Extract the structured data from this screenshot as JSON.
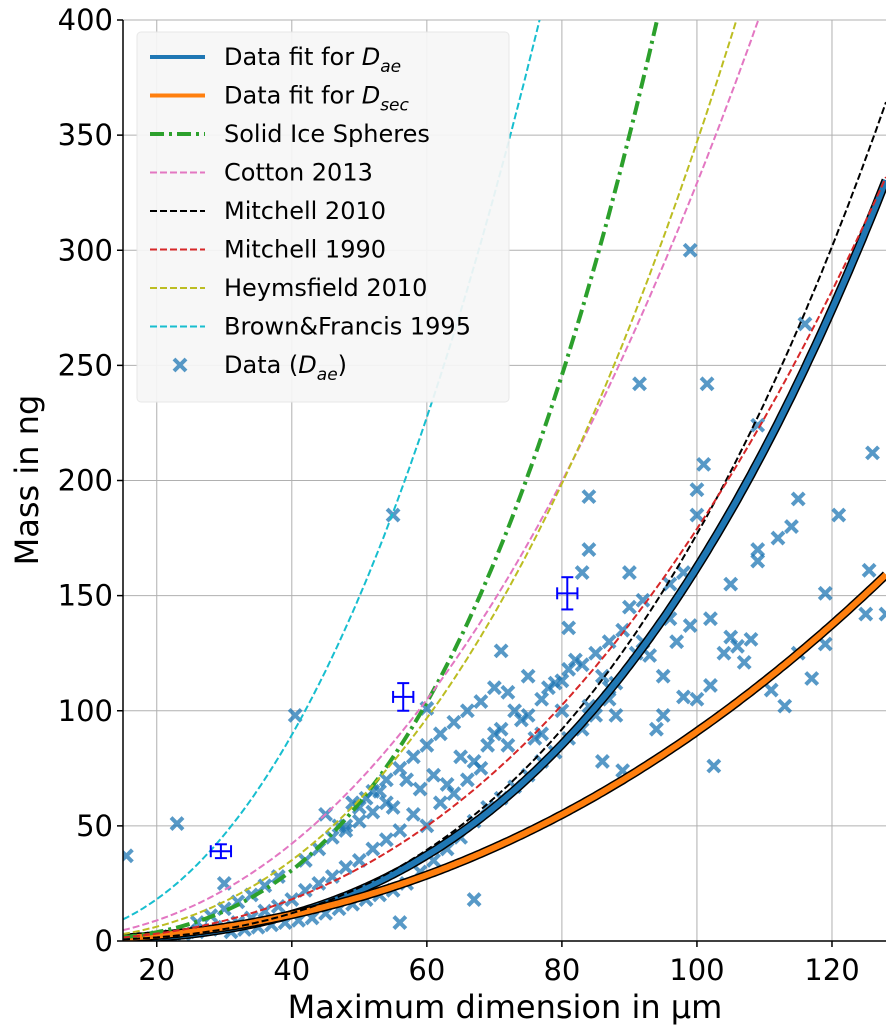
{
  "chart_data": {
    "type": "scatter",
    "title": "",
    "xlabel": "Maximum dimension in µm",
    "ylabel": "Mass in ng",
    "xlim": [
      15,
      128
    ],
    "ylim": [
      0,
      400
    ],
    "xticks": [
      20,
      40,
      60,
      80,
      100,
      120
    ],
    "yticks": [
      0,
      50,
      100,
      150,
      200,
      250,
      300,
      350,
      400
    ],
    "grid": true,
    "legend_position": "top-left",
    "legend": [
      {
        "label_html": "Data fit for <tspan font-style=\"italic\">D</tspan><tspan font-style=\"italic\" font-size=\"17\" dy=\"7\">ae</tspan>",
        "kind": "line",
        "color": "#1f77b4",
        "dash": "solid"
      },
      {
        "label_html": "Data fit for <tspan font-style=\"italic\">D</tspan><tspan font-style=\"italic\" font-size=\"17\" dy=\"7\">sec</tspan>",
        "kind": "line",
        "color": "#ff7f0e",
        "dash": "solid"
      },
      {
        "label_html": "Solid Ice Spheres",
        "kind": "line",
        "color": "#2ca02c",
        "dash": "dashdot"
      },
      {
        "label_html": "Cotton 2013",
        "kind": "line",
        "color": "#e377c2",
        "dash": "dashed"
      },
      {
        "label_html": "Mitchell 2010",
        "kind": "line",
        "color": "#000000",
        "dash": "dashed"
      },
      {
        "label_html": "Mitchell 1990",
        "kind": "line",
        "color": "#d62728",
        "dash": "dashed"
      },
      {
        "label_html": "Heymsfield 2010",
        "kind": "line",
        "color": "#bcbd22",
        "dash": "dashed"
      },
      {
        "label_html": "Brown&amp;Francis 1995",
        "kind": "line",
        "color": "#17becf",
        "dash": "dashed"
      },
      {
        "label_html": "Data (<tspan font-style=\"italic\">D</tspan><tspan font-style=\"italic\" font-size=\"17\" dy=\"7\">ae</tspan><tspan dy=\"-7\">)</tspan>",
        "kind": "marker",
        "color": "#1f77b4"
      }
    ],
    "series": [
      {
        "kind": "fit",
        "color": "#1f77b4",
        "dash": "solid",
        "a": 0.000282,
        "b": 2.88
      },
      {
        "kind": "fit",
        "color": "#ff7f0e",
        "dash": "solid",
        "a": 0.00271,
        "b": 2.263
      },
      {
        "kind": "curve",
        "color": "#2ca02c",
        "dash": "dashdot",
        "a": 0.00048,
        "b": 3.0
      },
      {
        "kind": "curve",
        "color": "#e377c2",
        "dash": "dashed",
        "a": 0.0109,
        "b": 2.24
      },
      {
        "kind": "curve",
        "color": "#000000",
        "dash": "dashed",
        "a": 0.000244,
        "b": 2.93
      },
      {
        "kind": "curve",
        "color": "#d62728",
        "dash": "dashed",
        "a": 0.00179,
        "b": 2.5
      },
      {
        "kind": "curve",
        "color": "#bcbd22",
        "dash": "dashed",
        "a": 0.00347,
        "b": 2.5
      },
      {
        "kind": "curve",
        "color": "#17becf",
        "dash": "dashed",
        "a": 0.0185,
        "b": 2.3
      }
    ],
    "scatter": {
      "color": "#1f77b4",
      "points": [
        [
          15.5,
          37
        ],
        [
          23,
          51
        ],
        [
          30,
          25
        ],
        [
          40.5,
          98
        ],
        [
          55,
          185
        ],
        [
          56,
          8
        ],
        [
          60,
          101
        ],
        [
          67,
          18
        ],
        [
          71,
          126
        ],
        [
          72,
          108
        ],
        [
          75,
          115
        ],
        [
          77,
          90
        ],
        [
          80,
          113
        ],
        [
          81,
          136
        ],
        [
          83,
          160
        ],
        [
          84,
          170
        ],
        [
          84,
          193
        ],
        [
          86,
          78
        ],
        [
          87,
          110
        ],
        [
          88,
          112
        ],
        [
          89,
          74
        ],
        [
          90,
          160
        ],
        [
          91,
          125
        ],
        [
          91.5,
          242
        ],
        [
          92,
          148
        ],
        [
          93,
          124
        ],
        [
          94,
          92
        ],
        [
          95,
          115
        ],
        [
          96,
          140
        ],
        [
          96,
          155
        ],
        [
          97,
          130
        ],
        [
          98,
          106
        ],
        [
          98,
          160
        ],
        [
          99,
          137
        ],
        [
          99,
          300
        ],
        [
          100,
          185
        ],
        [
          100,
          196
        ],
        [
          101,
          207
        ],
        [
          101.5,
          242
        ],
        [
          102,
          111
        ],
        [
          102,
          140
        ],
        [
          102.5,
          76
        ],
        [
          104,
          125
        ],
        [
          105,
          155
        ],
        [
          105,
          132
        ],
        [
          106,
          128
        ],
        [
          107,
          121
        ],
        [
          108,
          131
        ],
        [
          109,
          165
        ],
        [
          109,
          224
        ],
        [
          109,
          170
        ],
        [
          111,
          109
        ],
        [
          112,
          175
        ],
        [
          113,
          102
        ],
        [
          114,
          180
        ],
        [
          115,
          125
        ],
        [
          115,
          192
        ],
        [
          116,
          268
        ],
        [
          117,
          114
        ],
        [
          119,
          129
        ],
        [
          119,
          151
        ],
        [
          121,
          185
        ],
        [
          125,
          142
        ],
        [
          125.5,
          161
        ],
        [
          126,
          212
        ],
        [
          128,
          142
        ],
        [
          100,
          105
        ],
        [
          95,
          98
        ],
        [
          92,
          130
        ],
        [
          90,
          145
        ],
        [
          88,
          98
        ],
        [
          86,
          115
        ],
        [
          84,
          102
        ],
        [
          82,
          122
        ],
        [
          80,
          100
        ],
        [
          78,
          110
        ],
        [
          76,
          88
        ],
        [
          74,
          96
        ],
        [
          72,
          85
        ],
        [
          70,
          90
        ],
        [
          68,
          75
        ],
        [
          66,
          70
        ],
        [
          64,
          64
        ],
        [
          62,
          60
        ],
        [
          60,
          50
        ],
        [
          58,
          55
        ],
        [
          56,
          48
        ],
        [
          54,
          44
        ],
        [
          52,
          40
        ],
        [
          50,
          35
        ],
        [
          48,
          32
        ],
        [
          46,
          28
        ],
        [
          44,
          25
        ],
        [
          42,
          22
        ],
        [
          40,
          18
        ],
        [
          38,
          15
        ],
        [
          36,
          13
        ],
        [
          34,
          10
        ],
        [
          32,
          8
        ],
        [
          30,
          6
        ],
        [
          28,
          5
        ],
        [
          26,
          4
        ],
        [
          24,
          3
        ],
        [
          22,
          2
        ],
        [
          20,
          1.5
        ],
        [
          18,
          1
        ],
        [
          45,
          55
        ],
        [
          47,
          50
        ],
        [
          49,
          60
        ],
        [
          51,
          62
        ],
        [
          53,
          65
        ],
        [
          55,
          58
        ],
        [
          57,
          70
        ],
        [
          59,
          66
        ],
        [
          61,
          72
        ],
        [
          63,
          68
        ],
        [
          65,
          80
        ],
        [
          67,
          78
        ],
        [
          69,
          85
        ],
        [
          71,
          92
        ],
        [
          73,
          100
        ],
        [
          75,
          98
        ],
        [
          77,
          105
        ],
        [
          79,
          112
        ],
        [
          81,
          118
        ],
        [
          83,
          120
        ],
        [
          85,
          125
        ],
        [
          87,
          130
        ],
        [
          89,
          135
        ],
        [
          63,
          40
        ],
        [
          65,
          45
        ],
        [
          67,
          52
        ],
        [
          69,
          58
        ],
        [
          71,
          62
        ],
        [
          73,
          67
        ],
        [
          75,
          72
        ],
        [
          77,
          78
        ],
        [
          79,
          82
        ],
        [
          81,
          88
        ],
        [
          83,
          92
        ],
        [
          85,
          98
        ],
        [
          87,
          105
        ],
        [
          42,
          35
        ],
        [
          44,
          40
        ],
        [
          46,
          45
        ],
        [
          48,
          48
        ],
        [
          50,
          52
        ],
        [
          52,
          56
        ],
        [
          54,
          60
        ],
        [
          38,
          28
        ],
        [
          36,
          24
        ],
        [
          34,
          20
        ],
        [
          32,
          17
        ],
        [
          30,
          14
        ],
        [
          28,
          11
        ],
        [
          26,
          8
        ],
        [
          60,
          85
        ],
        [
          62,
          90
        ],
        [
          64,
          95
        ],
        [
          66,
          100
        ],
        [
          68,
          104
        ],
        [
          70,
          110
        ],
        [
          58,
          80
        ],
        [
          56,
          75
        ],
        [
          54,
          70
        ],
        [
          52,
          65
        ],
        [
          50,
          58
        ],
        [
          48,
          50
        ],
        [
          61,
          35
        ],
        [
          59,
          30
        ],
        [
          57,
          25
        ],
        [
          55,
          22
        ],
        [
          53,
          20
        ],
        [
          51,
          18
        ],
        [
          49,
          16
        ],
        [
          47,
          14
        ],
        [
          45,
          12
        ],
        [
          43,
          10
        ],
        [
          41,
          9
        ],
        [
          39,
          8
        ],
        [
          37,
          7
        ],
        [
          35,
          6
        ],
        [
          33,
          5
        ],
        [
          31,
          4
        ]
      ]
    },
    "errorbars": [
      {
        "x": 29.5,
        "y": 39,
        "xerr": 1.5,
        "yerr": 3,
        "color": "#0000ff"
      },
      {
        "x": 56.5,
        "y": 106,
        "xerr": 1.5,
        "yerr": 6,
        "color": "#0000ff"
      },
      {
        "x": 80.8,
        "y": 151,
        "xerr": 1.5,
        "yerr": 7,
        "color": "#0000ff"
      }
    ]
  }
}
